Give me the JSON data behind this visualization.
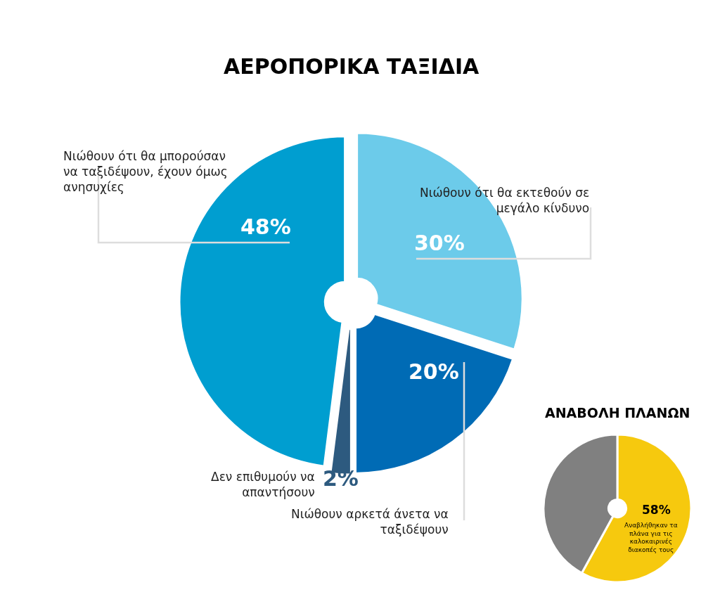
{
  "chart_data": [
    {
      "type": "pie",
      "title": "ΑΕΡΟΠΟΡΙΚΑ ΤΑΞΙΔΙΑ",
      "categories": [
        "Νιώθουν ότι θα εκτεθούν σε μεγάλο κίνδυνο",
        "Νιώθουν αρκετά άνετα να ταξιδέψουν",
        "Δεν επιθυμούν να απαντήσουν",
        "Νιώθουν ότι θα μπορούσαν να ταξιδέψουν, έχουν όμως ανησυχίες"
      ],
      "values": [
        30,
        20,
        2,
        48
      ],
      "colors": [
        "#6ccbea",
        "#006bb5",
        "#2d5a7f",
        "#009ed0"
      ],
      "value_labels": [
        "30%",
        "20%",
        "2%",
        "48%"
      ]
    },
    {
      "type": "pie",
      "title": "ΑΝΑΒΟΛΗ ΠΛΑΝΩΝ",
      "categories": [
        "Αναβλήθηκαν τα πλάνα για τις καλοκαιρινές διακοπές τους",
        null
      ],
      "values": [
        58,
        42
      ],
      "colors": [
        "#f6c90e",
        "#808080"
      ],
      "value_labels": [
        "58%",
        null
      ]
    }
  ]
}
